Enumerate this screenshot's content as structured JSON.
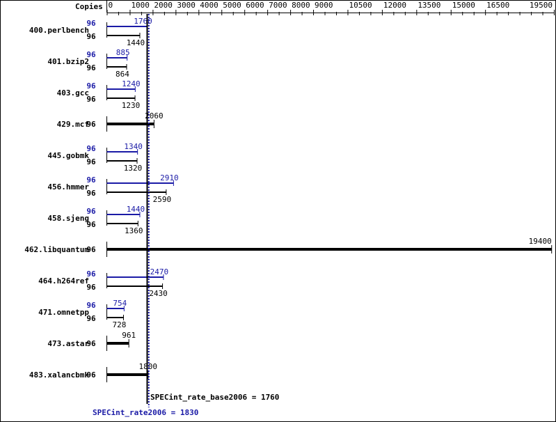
{
  "chart_data": {
    "type": "bar",
    "axis_label": "Copies",
    "xlim": [
      0,
      19500
    ],
    "ticks": [
      0,
      1000,
      2000,
      3000,
      4000,
      5000,
      6000,
      7000,
      8000,
      9000,
      10500,
      12000,
      13500,
      15000,
      16500,
      19500
    ],
    "categories": [
      "400.perlbench",
      "401.bzip2",
      "403.gcc",
      "429.mcf",
      "445.gobmk",
      "456.hmmer",
      "458.sjeng",
      "462.libquantum",
      "464.h264ref",
      "471.omnetpp",
      "473.astar",
      "483.xalancbmk"
    ],
    "copies": [
      96,
      96,
      96,
      96,
      96,
      96,
      96,
      96,
      96,
      96,
      96,
      96
    ],
    "series": [
      {
        "name": "SPECint_rate2006",
        "values": [
          1760,
          885,
          1240,
          2060,
          1340,
          2910,
          1440,
          19400,
          2470,
          754,
          961,
          1800
        ]
      },
      {
        "name": "SPECint_rate_base2006",
        "values": [
          1440,
          864,
          1230,
          2060,
          1320,
          2590,
          1360,
          19400,
          2430,
          728,
          961,
          1800
        ]
      }
    ],
    "reference_lines": [
      {
        "label": "SPECint_rate_base2006 = 1760",
        "value": 1760,
        "color": "#000000"
      },
      {
        "label": "SPECint_rate2006 = 1830",
        "value": 1830,
        "color": "#1a1aa6"
      }
    ],
    "colors": {
      "peak": "#1a1aa6",
      "base": "#000000"
    }
  }
}
